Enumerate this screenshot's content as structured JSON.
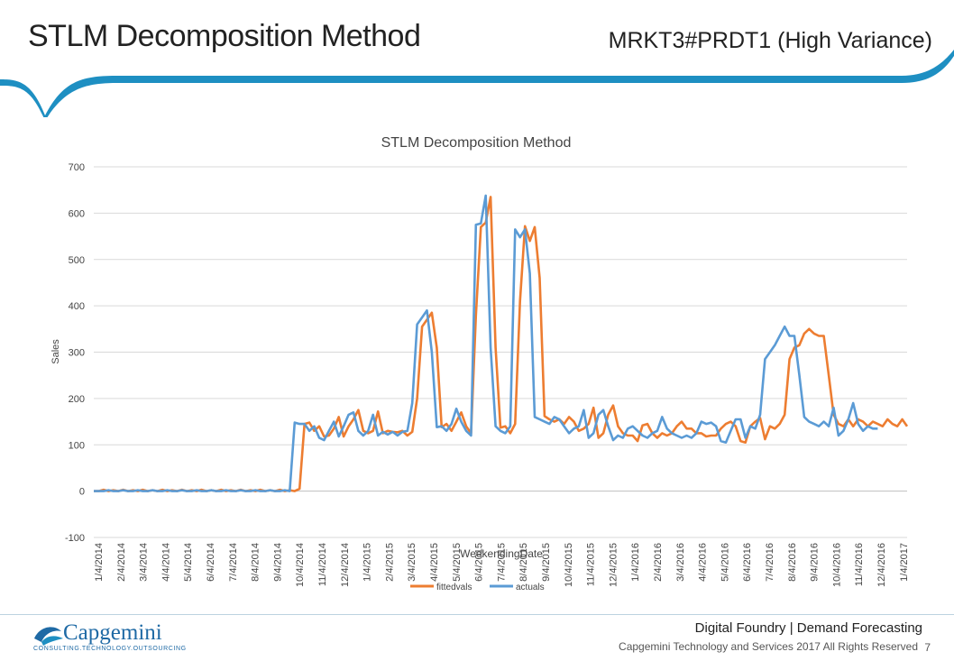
{
  "slide": {
    "title": "STLM Decomposition Method",
    "subtitle": "MRKT3#PRDT1 (High Variance)",
    "footer_title": "Digital Foundry | Demand Forecasting",
    "footer_copyright": "Capgemini Technology and Services 2017 All Rights Reserved",
    "page_number": "7",
    "logo_name": "Capgemini",
    "logo_tagline": "CONSULTING.TECHNOLOGY.OUTSOURCING",
    "accent_color": "#1e8fc2"
  },
  "chart_data": {
    "type": "line",
    "title": "STLM Decomposition Method",
    "xlabel": "WeekendingDate",
    "ylabel": "Sales",
    "ylim": [
      -100,
      700
    ],
    "yticks": [
      -100,
      0,
      100,
      200,
      300,
      400,
      500,
      600,
      700
    ],
    "grid": true,
    "legend_position": "bottom",
    "x_tick_labels": [
      "1/4/2014",
      "2/4/2014",
      "3/4/2014",
      "4/4/2014",
      "5/4/2014",
      "6/4/2014",
      "7/4/2014",
      "8/4/2014",
      "9/4/2014",
      "10/4/2014",
      "11/4/2014",
      "12/4/2014",
      "1/4/2015",
      "2/4/2015",
      "3/4/2015",
      "4/4/2015",
      "5/4/2015",
      "6/4/2015",
      "7/4/2015",
      "8/4/2015",
      "9/4/2015",
      "10/4/2015",
      "11/4/2015",
      "12/4/2015",
      "1/4/2016",
      "2/4/2016",
      "3/4/2016",
      "4/4/2016",
      "5/4/2016",
      "6/4/2016",
      "7/4/2016",
      "8/4/2016",
      "9/4/2016",
      "10/4/2016",
      "11/4/2016",
      "12/4/2016",
      "1/4/2017"
    ],
    "series": [
      {
        "name": "fittedvals",
        "color": "#ed7d31",
        "values": [
          0,
          0,
          3,
          0,
          2,
          0,
          3,
          0,
          2,
          0,
          3,
          0,
          2,
          0,
          3,
          0,
          2,
          0,
          3,
          0,
          2,
          0,
          3,
          0,
          2,
          0,
          3,
          0,
          2,
          0,
          3,
          0,
          2,
          0,
          3,
          0,
          2,
          0,
          3,
          0,
          2,
          0,
          5,
          145,
          148,
          130,
          140,
          118,
          120,
          135,
          160,
          118,
          140,
          155,
          175,
          130,
          125,
          130,
          172,
          125,
          130,
          128,
          127,
          130,
          120,
          128,
          200,
          355,
          370,
          385,
          310,
          138,
          145,
          130,
          150,
          170,
          140,
          125,
          380,
          570,
          580,
          635,
          310,
          137,
          140,
          125,
          145,
          410,
          572,
          540,
          570,
          460,
          162,
          155,
          150,
          155,
          145,
          160,
          150,
          130,
          135,
          145,
          180,
          115,
          125,
          165,
          185,
          140,
          125,
          120,
          120,
          108,
          142,
          145,
          125,
          115,
          125,
          120,
          125,
          140,
          150,
          135,
          135,
          125,
          125,
          118,
          120,
          120,
          135,
          145,
          150,
          140,
          108,
          105,
          140,
          150,
          158,
          112,
          140,
          135,
          145,
          165,
          285,
          310,
          315,
          340,
          350,
          340,
          335,
          335,
          250,
          165,
          145,
          140,
          155,
          140,
          155,
          150,
          140,
          150,
          145,
          140,
          155,
          145,
          140,
          155,
          140
        ]
      },
      {
        "name": "actuals",
        "color": "#5b9bd5",
        "values": [
          0,
          0,
          0,
          2,
          0,
          0,
          2,
          0,
          0,
          2,
          0,
          0,
          2,
          0,
          0,
          2,
          0,
          0,
          2,
          0,
          0,
          2,
          0,
          0,
          2,
          0,
          0,
          2,
          0,
          0,
          2,
          0,
          0,
          2,
          0,
          0,
          2,
          0,
          0,
          2,
          0,
          148,
          145,
          145,
          130,
          140,
          115,
          110,
          130,
          150,
          118,
          140,
          165,
          170,
          130,
          120,
          130,
          165,
          120,
          128,
          122,
          128,
          120,
          128,
          130,
          190,
          360,
          375,
          390,
          300,
          138,
          140,
          130,
          145,
          178,
          150,
          130,
          120,
          575,
          578,
          638,
          310,
          140,
          130,
          125,
          140,
          565,
          548,
          565,
          470,
          160,
          155,
          150,
          145,
          160,
          155,
          140,
          125,
          135,
          140,
          175,
          115,
          125,
          165,
          175,
          140,
          110,
          120,
          115,
          135,
          140,
          130,
          120,
          115,
          125,
          130,
          160,
          135,
          125,
          120,
          115,
          120,
          115,
          125,
          150,
          145,
          148,
          140,
          108,
          105,
          130,
          155,
          155,
          115,
          140,
          135,
          165,
          285,
          300,
          315,
          335,
          355,
          335,
          335,
          250,
          160,
          150,
          145,
          140,
          150,
          140,
          180,
          120,
          130,
          155,
          190,
          145,
          130,
          140,
          135,
          135
        ]
      }
    ]
  }
}
